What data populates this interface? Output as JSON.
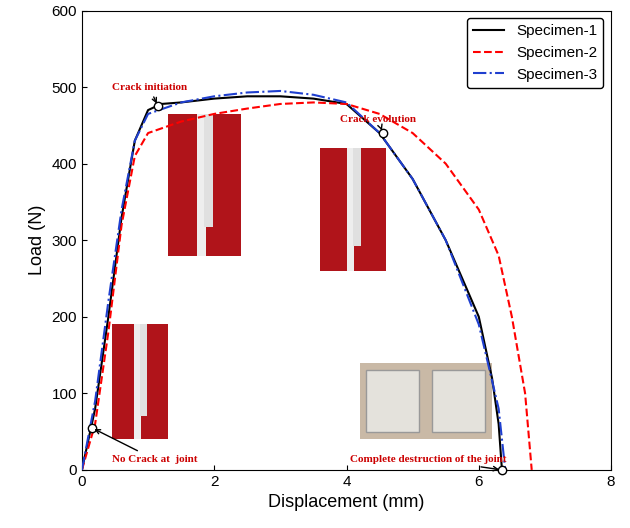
{
  "chart_data": {
    "type": "line",
    "x_label": "Displacement (mm)",
    "y_label": "Load (N)",
    "xlim": [
      0,
      8
    ],
    "xticks": [
      0,
      2,
      4,
      6,
      8
    ],
    "ylim": [
      0,
      600
    ],
    "yticks": [
      0,
      100,
      200,
      300,
      400,
      500,
      600
    ],
    "legend": "upper right",
    "series": [
      {
        "name": "Specimen-1",
        "color": "#000000",
        "line_style": "solid",
        "x": [
          0,
          0.2,
          0.4,
          0.6,
          0.8,
          1.0,
          1.2,
          1.5,
          2.0,
          2.5,
          3.0,
          3.5,
          4.0,
          4.5,
          5.0,
          5.5,
          6.0,
          6.2,
          6.3,
          6.35
        ],
        "values": [
          0,
          80,
          200,
          330,
          430,
          470,
          478,
          480,
          485,
          488,
          488,
          485,
          478,
          440,
          380,
          300,
          200,
          120,
          60,
          0
        ]
      },
      {
        "name": "Specimen-2",
        "color": "#ff0000",
        "line_style": "dashed",
        "x": [
          0,
          0.2,
          0.4,
          0.6,
          0.8,
          1.0,
          1.5,
          2.0,
          2.5,
          3.0,
          3.5,
          4.0,
          4.5,
          5.0,
          5.5,
          6.0,
          6.3,
          6.5,
          6.7,
          6.8
        ],
        "values": [
          0,
          60,
          180,
          320,
          410,
          440,
          455,
          465,
          472,
          478,
          480,
          478,
          465,
          440,
          400,
          340,
          280,
          200,
          100,
          0
        ]
      },
      {
        "name": "Specimen-3",
        "color": "#1f3fcf",
        "line_style": "dashdot",
        "x": [
          0,
          0.2,
          0.4,
          0.6,
          0.8,
          1.0,
          1.5,
          2.0,
          2.5,
          3.0,
          3.5,
          4.0,
          4.5,
          5.0,
          5.5,
          6.0,
          6.3,
          6.4
        ],
        "values": [
          0,
          90,
          220,
          340,
          430,
          465,
          480,
          488,
          493,
          495,
          490,
          480,
          440,
          380,
          300,
          190,
          80,
          0
        ]
      }
    ],
    "annotations": [
      {
        "text": "Crack initiation",
        "x": 1.15,
        "y": 475
      },
      {
        "text": "Crack evolution",
        "x": 4.55,
        "y": 440
      },
      {
        "text": "No Crack at  joint",
        "x": 0.15,
        "y": 55
      },
      {
        "text": "Complete destruction of the joint",
        "x": 6.35,
        "y": 0
      }
    ]
  }
}
